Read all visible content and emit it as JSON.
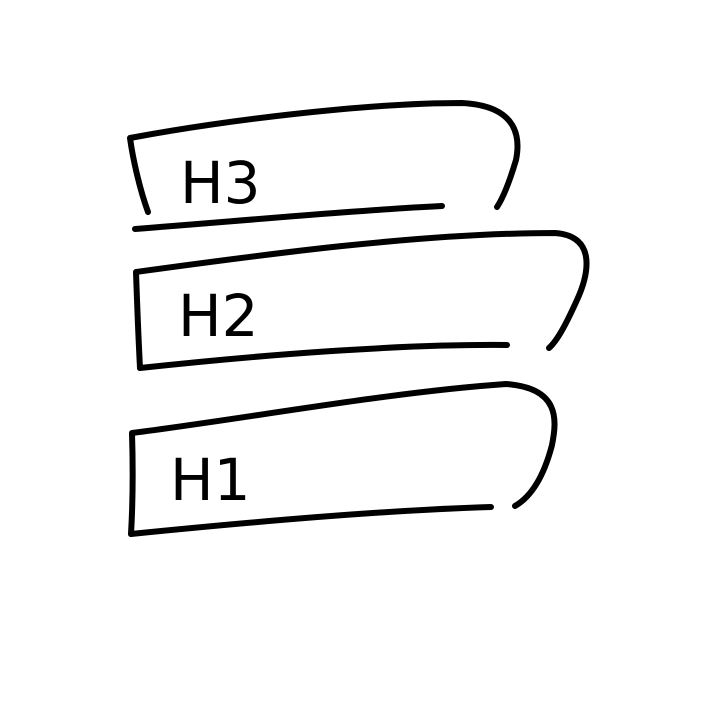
{
  "diagram": {
    "title": "",
    "blocks": [
      {
        "id": "block-h3",
        "label": "H3"
      },
      {
        "id": "block-h2",
        "label": "H2"
      },
      {
        "id": "block-h1",
        "label": "H1"
      }
    ]
  },
  "colors": {
    "background": "#ffffff",
    "ink": "#000000"
  }
}
